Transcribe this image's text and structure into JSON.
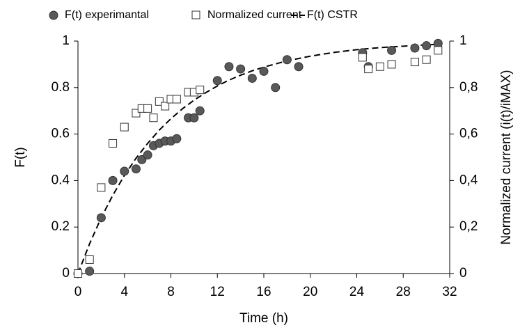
{
  "chart_data": {
    "type": "scatter",
    "xlabel": "Time (h)",
    "ylabel": "F(t)",
    "y2label": "Normalized current (i(t)/iMAX)",
    "xlim": [
      0,
      32
    ],
    "xticks": [
      0,
      4,
      8,
      12,
      16,
      20,
      24,
      28,
      32
    ],
    "ylim": [
      0,
      1
    ],
    "yticks": [
      0,
      0.2,
      0.4,
      0.6,
      0.8,
      1
    ],
    "y2lim": [
      0,
      1
    ],
    "y2ticks": [
      {
        "value": 0,
        "label": "0"
      },
      {
        "value": 0.2,
        "label": "0,2"
      },
      {
        "value": 0.4,
        "label": "0,4"
      },
      {
        "value": 0.6,
        "label": "0,6"
      },
      {
        "value": 0.8,
        "label": "0,8"
      },
      {
        "value": 1,
        "label": "1"
      }
    ],
    "legend": "top",
    "series": [
      {
        "name": "F(t) experimantal",
        "marker": "circle",
        "color": "#595959",
        "x": [
          0,
          1,
          2,
          3,
          4,
          5,
          5.5,
          6,
          6.5,
          7,
          7.5,
          8,
          8.5,
          9.5,
          10,
          10.5,
          12,
          13,
          14,
          15,
          16,
          17,
          18,
          19,
          24.5,
          25,
          27,
          29,
          30,
          31
        ],
        "values": [
          0,
          0.01,
          0.24,
          0.4,
          0.44,
          0.45,
          0.49,
          0.51,
          0.55,
          0.56,
          0.57,
          0.57,
          0.58,
          0.67,
          0.67,
          0.7,
          0.83,
          0.89,
          0.88,
          0.84,
          0.87,
          0.8,
          0.92,
          0.89,
          0.95,
          0.89,
          0.96,
          0.97,
          0.98,
          0.99
        ]
      },
      {
        "name": "Normalized current",
        "marker": "square",
        "color": "#ffffff",
        "axis": "y2",
        "x": [
          0,
          1,
          2,
          3,
          4,
          5,
          5.5,
          6,
          6.5,
          7,
          7.5,
          8,
          8.5,
          9.5,
          10,
          10.5,
          24.5,
          25,
          26,
          27,
          29,
          30,
          31
        ],
        "values": [
          0,
          0.06,
          0.37,
          0.56,
          0.63,
          0.69,
          0.71,
          0.71,
          0.67,
          0.74,
          0.72,
          0.75,
          0.75,
          0.78,
          0.78,
          0.79,
          0.93,
          0.88,
          0.89,
          0.9,
          0.91,
          0.92,
          0.96
        ]
      },
      {
        "name": "F(t) CSTR",
        "marker": "dashed-line",
        "color": "#000000",
        "x": [
          0,
          1,
          2,
          3,
          4,
          5,
          6,
          7,
          8,
          9,
          10,
          11,
          12,
          13,
          14,
          15,
          16,
          18,
          20,
          22,
          24,
          26,
          28,
          30,
          31
        ],
        "values": [
          0,
          0.128,
          0.24,
          0.337,
          0.422,
          0.496,
          0.56,
          0.617,
          0.666,
          0.709,
          0.746,
          0.778,
          0.807,
          0.832,
          0.853,
          0.872,
          0.888,
          0.915,
          0.935,
          0.951,
          0.963,
          0.972,
          0.978,
          0.984,
          0.986
        ]
      }
    ]
  }
}
